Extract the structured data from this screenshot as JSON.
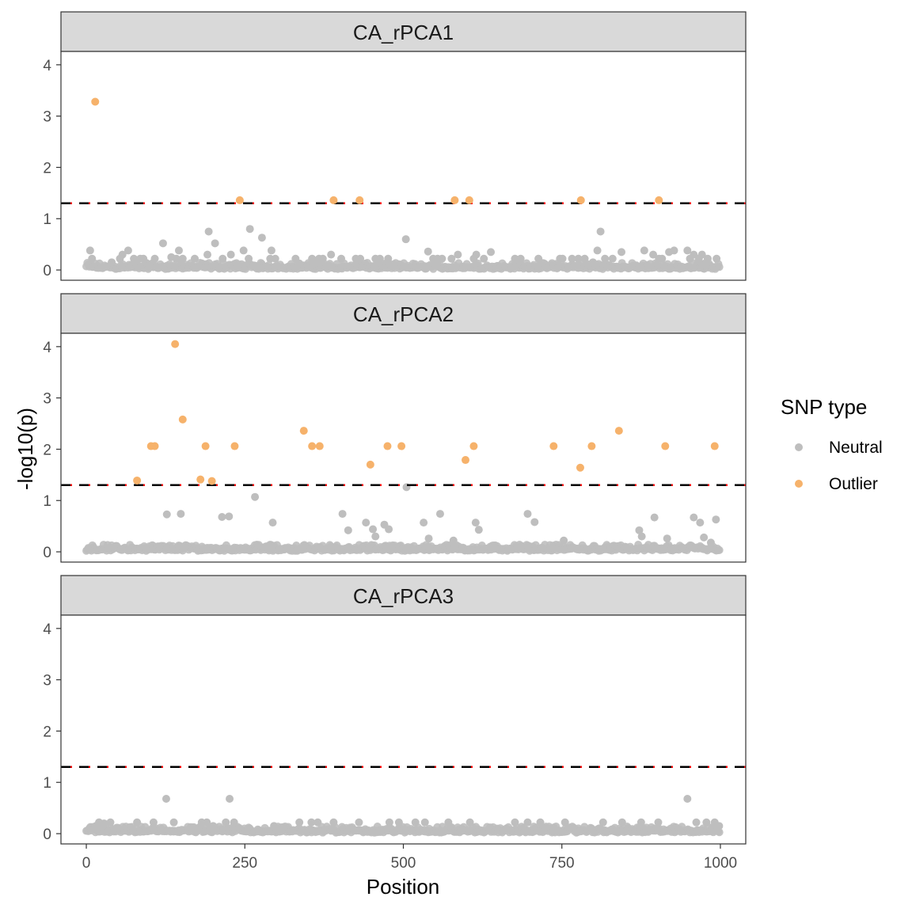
{
  "chart_data": {
    "type": "scatter",
    "xlabel": "Position",
    "ylabel": "-log10(p)",
    "xlim": [
      -40,
      1040
    ],
    "ylim": [
      -0.2,
      4.26
    ],
    "x_ticks": [
      0,
      250,
      500,
      750,
      1000
    ],
    "y_ticks": [
      0,
      1,
      2,
      3,
      4
    ],
    "threshold": 1.3,
    "grid": false,
    "legend": {
      "title": "SNP type",
      "position": "right",
      "entries": [
        {
          "label": "Neutral",
          "color": "#bebebe"
        },
        {
          "label": "Outlier",
          "color": "#f6b26b"
        }
      ]
    },
    "panels": [
      {
        "title": "CA_rPCA1",
        "outliers": [
          [
            14,
            3.28
          ],
          [
            242,
            1.36
          ],
          [
            390,
            1.36
          ],
          [
            431,
            1.36
          ],
          [
            581,
            1.36
          ],
          [
            604,
            1.36
          ],
          [
            780,
            1.36
          ],
          [
            903,
            1.36
          ]
        ],
        "neutral_highlights": [
          [
            6,
            0.38
          ],
          [
            9,
            0.22
          ],
          [
            40,
            0.15
          ],
          [
            53,
            0.22
          ],
          [
            57,
            0.3
          ],
          [
            66,
            0.38
          ],
          [
            75,
            0.22
          ],
          [
            85,
            0.22
          ],
          [
            90,
            0.22
          ],
          [
            108,
            0.22
          ],
          [
            121,
            0.52
          ],
          [
            134,
            0.25
          ],
          [
            142,
            0.22
          ],
          [
            146,
            0.38
          ],
          [
            152,
            0.22
          ],
          [
            171,
            0.22
          ],
          [
            191,
            0.3
          ],
          [
            193,
            0.75
          ],
          [
            203,
            0.52
          ],
          [
            215,
            0.22
          ],
          [
            228,
            0.3
          ],
          [
            248,
            0.38
          ],
          [
            256,
            0.22
          ],
          [
            258,
            0.8
          ],
          [
            277,
            0.63
          ],
          [
            290,
            0.22
          ],
          [
            292,
            0.38
          ],
          [
            298,
            0.22
          ],
          [
            330,
            0.22
          ],
          [
            356,
            0.22
          ],
          [
            363,
            0.15
          ],
          [
            367,
            0.22
          ],
          [
            373,
            0.22
          ],
          [
            386,
            0.3
          ],
          [
            402,
            0.22
          ],
          [
            425,
            0.22
          ],
          [
            432,
            0.22
          ],
          [
            456,
            0.22
          ],
          [
            463,
            0.22
          ],
          [
            476,
            0.22
          ],
          [
            504,
            0.6
          ],
          [
            539,
            0.36
          ],
          [
            547,
            0.22
          ],
          [
            554,
            0.22
          ],
          [
            561,
            0.22
          ],
          [
            576,
            0.22
          ],
          [
            586,
            0.3
          ],
          [
            611,
            0.22
          ],
          [
            615,
            0.3
          ],
          [
            627,
            0.22
          ],
          [
            638,
            0.35
          ],
          [
            676,
            0.22
          ],
          [
            685,
            0.22
          ],
          [
            713,
            0.22
          ],
          [
            747,
            0.22
          ],
          [
            751,
            0.22
          ],
          [
            766,
            0.22
          ],
          [
            776,
            0.22
          ],
          [
            786,
            0.22
          ],
          [
            799,
            0.15
          ],
          [
            806,
            0.38
          ],
          [
            811,
            0.75
          ],
          [
            818,
            0.22
          ],
          [
            830,
            0.22
          ],
          [
            844,
            0.35
          ],
          [
            880,
            0.38
          ],
          [
            894,
            0.3
          ],
          [
            903,
            0.22
          ],
          [
            908,
            0.22
          ],
          [
            919,
            0.35
          ],
          [
            927,
            0.38
          ],
          [
            948,
            0.38
          ],
          [
            952,
            0.22
          ],
          [
            958,
            0.3
          ],
          [
            966,
            0.22
          ],
          [
            971,
            0.3
          ],
          [
            980,
            0.22
          ],
          [
            994,
            0.22
          ]
        ]
      },
      {
        "title": "CA_rPCA2",
        "outliers": [
          [
            80,
            1.39
          ],
          [
            102,
            2.06
          ],
          [
            108,
            2.06
          ],
          [
            140,
            4.05
          ],
          [
            152,
            2.58
          ],
          [
            180,
            1.41
          ],
          [
            188,
            2.06
          ],
          [
            198,
            1.38
          ],
          [
            234,
            2.06
          ],
          [
            343,
            2.36
          ],
          [
            356,
            2.06
          ],
          [
            368,
            2.06
          ],
          [
            448,
            1.7
          ],
          [
            475,
            2.06
          ],
          [
            497,
            2.06
          ],
          [
            598,
            1.79
          ],
          [
            611,
            2.06
          ],
          [
            737,
            2.06
          ],
          [
            779,
            1.64
          ],
          [
            797,
            2.06
          ],
          [
            840,
            2.36
          ],
          [
            913,
            2.06
          ],
          [
            991,
            2.06
          ]
        ],
        "neutral_highlights": [
          [
            127,
            0.73
          ],
          [
            149,
            0.74
          ],
          [
            214,
            0.68
          ],
          [
            225,
            0.69
          ],
          [
            266,
            1.07
          ],
          [
            294,
            0.57
          ],
          [
            404,
            0.74
          ],
          [
            413,
            0.42
          ],
          [
            441,
            0.57
          ],
          [
            452,
            0.44
          ],
          [
            456,
            0.3
          ],
          [
            470,
            0.53
          ],
          [
            477,
            0.44
          ],
          [
            505,
            1.26
          ],
          [
            532,
            0.57
          ],
          [
            540,
            0.26
          ],
          [
            558,
            0.74
          ],
          [
            579,
            0.22
          ],
          [
            614,
            0.57
          ],
          [
            619,
            0.43
          ],
          [
            696,
            0.74
          ],
          [
            707,
            0.58
          ],
          [
            753,
            0.22
          ],
          [
            872,
            0.42
          ],
          [
            876,
            0.3
          ],
          [
            896,
            0.67
          ],
          [
            916,
            0.26
          ],
          [
            958,
            0.67
          ],
          [
            968,
            0.57
          ],
          [
            974,
            0.28
          ],
          [
            985,
            0.18
          ],
          [
            993,
            0.63
          ]
        ]
      },
      {
        "title": "CA_rPCA3",
        "outliers": [],
        "neutral_highlights": [
          [
            15,
            0.15
          ],
          [
            20,
            0.22
          ],
          [
            28,
            0.2
          ],
          [
            38,
            0.22
          ],
          [
            80,
            0.22
          ],
          [
            106,
            0.22
          ],
          [
            126,
            0.68
          ],
          [
            138,
            0.22
          ],
          [
            182,
            0.22
          ],
          [
            190,
            0.22
          ],
          [
            200,
            0.15
          ],
          [
            220,
            0.22
          ],
          [
            226,
            0.68
          ],
          [
            233,
            0.22
          ],
          [
            296,
            0.15
          ],
          [
            336,
            0.22
          ],
          [
            355,
            0.22
          ],
          [
            365,
            0.22
          ],
          [
            390,
            0.22
          ],
          [
            430,
            0.22
          ],
          [
            478,
            0.22
          ],
          [
            493,
            0.22
          ],
          [
            519,
            0.22
          ],
          [
            534,
            0.22
          ],
          [
            571,
            0.22
          ],
          [
            605,
            0.22
          ],
          [
            676,
            0.22
          ],
          [
            696,
            0.22
          ],
          [
            716,
            0.22
          ],
          [
            755,
            0.22
          ],
          [
            815,
            0.22
          ],
          [
            845,
            0.22
          ],
          [
            875,
            0.22
          ],
          [
            902,
            0.22
          ],
          [
            948,
            0.68
          ],
          [
            962,
            0.22
          ],
          [
            978,
            0.22
          ],
          [
            991,
            0.22
          ],
          [
            998,
            0.15
          ]
        ]
      }
    ]
  }
}
